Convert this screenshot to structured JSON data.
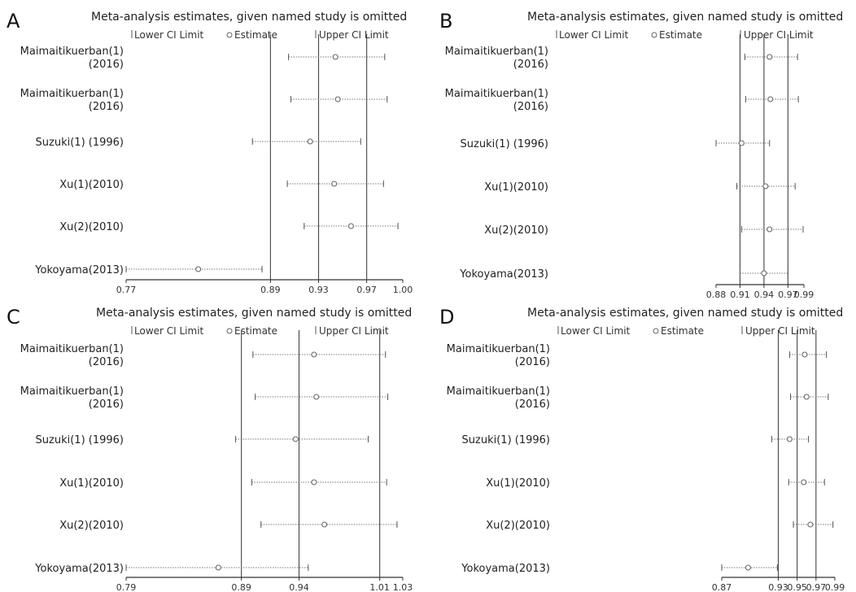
{
  "chart_data": [
    {
      "panel": "A",
      "type": "forest",
      "title": "Meta-analysis estimates, given named study is omitted",
      "legend": {
        "lower": "Lower CI Limit",
        "estimate": "Estimate",
        "upper": "Upper CI Limit"
      },
      "studies": [
        {
          "label": [
            "Maimaitikuerban(1)",
            "(2016)"
          ],
          "lower": 0.905,
          "estimate": 0.944,
          "upper": 0.985
        },
        {
          "label": [
            "Maimaitikuerban(1)",
            "(2016)"
          ],
          "lower": 0.907,
          "estimate": 0.946,
          "upper": 0.987
        },
        {
          "label": [
            "Suzuki(1) (1996)"
          ],
          "lower": 0.875,
          "estimate": 0.923,
          "upper": 0.965
        },
        {
          "label": [
            "Xu(1)(2010)"
          ],
          "lower": 0.904,
          "estimate": 0.943,
          "upper": 0.984
        },
        {
          "label": [
            "Xu(2)(2010)"
          ],
          "lower": 0.918,
          "estimate": 0.957,
          "upper": 0.996
        },
        {
          "label": [
            "Yokoyama(2013)"
          ],
          "lower": 0.77,
          "estimate": 0.83,
          "upper": 0.883
        }
      ],
      "xticks": [
        0.77,
        0.89,
        0.93,
        0.97,
        1.0
      ],
      "xtick_labels": [
        "0.77",
        "0.89",
        "0.93",
        "0.97",
        "1.00"
      ],
      "vlines": [
        0.89,
        0.93,
        0.97
      ],
      "xlim": [
        0.77,
        1.0
      ]
    },
    {
      "panel": "B",
      "type": "forest",
      "title": "Meta-analysis estimates, given named study is omitted",
      "legend": {
        "lower": "Lower CI Limit",
        "estimate": "Estimate",
        "upper": "Upper CI Limit"
      },
      "studies": [
        {
          "label": [
            "Maimaitikuerban(1)",
            "(2016)"
          ],
          "lower": 0.916,
          "estimate": 0.947,
          "upper": 0.982
        },
        {
          "label": [
            "Maimaitikuerban(1)",
            "(2016)"
          ],
          "lower": 0.917,
          "estimate": 0.948,
          "upper": 0.983
        },
        {
          "label": [
            "Suzuki(1) (1996)"
          ],
          "lower": 0.88,
          "estimate": 0.912,
          "upper": 0.947
        },
        {
          "label": [
            "Xu(1)(2010)"
          ],
          "lower": 0.906,
          "estimate": 0.942,
          "upper": 0.979
        },
        {
          "label": [
            "Xu(2)(2010)"
          ],
          "lower": 0.912,
          "estimate": 0.947,
          "upper": 0.989
        },
        {
          "label": [
            "Yokoyama(2013)"
          ],
          "lower": 0.91,
          "estimate": 0.94,
          "upper": 0.97
        }
      ],
      "xticks": [
        0.88,
        0.91,
        0.94,
        0.97,
        0.99
      ],
      "xtick_labels": [
        "0.88",
        "0.91",
        "0.94",
        "0.97",
        "0.99"
      ],
      "vlines": [
        0.91,
        0.94,
        0.97
      ],
      "xlim": [
        0.88,
        0.99
      ]
    },
    {
      "panel": "C",
      "type": "forest",
      "title": "Meta-analysis estimates, given named study is omitted",
      "legend": {
        "lower": "Lower CI Limit",
        "estimate": "Estimate",
        "upper": "Upper CI Limit"
      },
      "studies": [
        {
          "label": [
            "Maimaitikuerban(1)",
            "(2016)"
          ],
          "lower": 0.9,
          "estimate": 0.953,
          "upper": 1.015
        },
        {
          "label": [
            "Maimaitikuerban(1)",
            "(2016)"
          ],
          "lower": 0.902,
          "estimate": 0.955,
          "upper": 1.017
        },
        {
          "label": [
            "Suzuki(1) (1996)"
          ],
          "lower": 0.885,
          "estimate": 0.937,
          "upper": 1.0
        },
        {
          "label": [
            "Xu(1)(2010)"
          ],
          "lower": 0.899,
          "estimate": 0.953,
          "upper": 1.016
        },
        {
          "label": [
            "Xu(2)(2010)"
          ],
          "lower": 0.907,
          "estimate": 0.962,
          "upper": 1.025
        },
        {
          "label": [
            "Yokoyama(2013)"
          ],
          "lower": 0.79,
          "estimate": 0.87,
          "upper": 0.948
        }
      ],
      "xticks": [
        0.79,
        0.89,
        0.94,
        1.01,
        1.03
      ],
      "xtick_labels": [
        "0.79",
        "0.89",
        "0.94",
        "1.01",
        "1.03"
      ],
      "vlines": [
        0.89,
        0.94,
        1.01
      ],
      "xlim": [
        0.79,
        1.03
      ]
    },
    {
      "panel": "D",
      "type": "forest",
      "title": "Meta-analysis estimates, given named study is omitted",
      "legend": {
        "lower": "Lower CI Limit",
        "estimate": "Estimate",
        "upper": "Upper CI Limit"
      },
      "studies": [
        {
          "label": [
            "Maimaitikuerban(1)",
            "(2016)"
          ],
          "lower": 0.942,
          "estimate": 0.958,
          "upper": 0.981
        },
        {
          "label": [
            "Maimaitikuerban(1)",
            "(2016)"
          ],
          "lower": 0.943,
          "estimate": 0.96,
          "upper": 0.983
        },
        {
          "label": [
            "Suzuki(1) (1996)"
          ],
          "lower": 0.923,
          "estimate": 0.942,
          "upper": 0.962
        },
        {
          "label": [
            "Xu(1)(2010)"
          ],
          "lower": 0.941,
          "estimate": 0.957,
          "upper": 0.979
        },
        {
          "label": [
            "Xu(2)(2010)"
          ],
          "lower": 0.946,
          "estimate": 0.964,
          "upper": 0.988
        },
        {
          "label": [
            "Yokoyama(2013)"
          ],
          "lower": 0.87,
          "estimate": 0.898,
          "upper": 0.929
        }
      ],
      "xticks": [
        0.87,
        0.93,
        0.95,
        0.97,
        0.99
      ],
      "xtick_labels": [
        "0.87",
        "0.93",
        "0.95",
        "0.97",
        "0.99"
      ],
      "vlines": [
        0.93,
        0.95,
        0.97
      ],
      "xlim": [
        0.87,
        0.99
      ]
    }
  ]
}
